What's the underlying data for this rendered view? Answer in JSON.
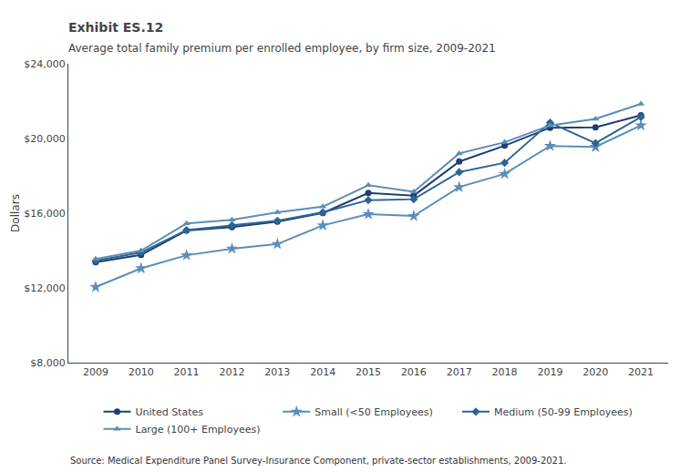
{
  "chart_data": {
    "type": "line",
    "title": "Exhibit ES.12",
    "subtitle": "Average total family premium per enrolled employee, by firm size, 2009-2021",
    "annotations": [
      "Source: Medical Expenditure Panel Survey-Insurance Component, private-sector establishments, 2009-2021."
    ],
    "ylabel": "Dollars",
    "x": [
      2009,
      2010,
      2011,
      2012,
      2013,
      2014,
      2015,
      2016,
      2017,
      2018,
      2019,
      2020,
      2021
    ],
    "series": [
      {
        "name": "United States",
        "color": "#1f3f6e",
        "marker": "circle",
        "values": [
          13375,
          13770,
          15073,
          15253,
          15545,
          16011,
          17082,
          16945,
          18764,
          19616,
          20576,
          20599,
          21241
        ]
      },
      {
        "name": "Small (<50 Employees)",
        "color": "#5a8eb8",
        "marker": "star",
        "values": [
          12050,
          13050,
          13750,
          14100,
          14350,
          15350,
          15950,
          15850,
          17400,
          18100,
          19600,
          19550,
          20700
        ]
      },
      {
        "name": "Medium (50-99 Employees)",
        "color": "#2e6494",
        "marker": "diamond",
        "values": [
          13450,
          13900,
          15100,
          15350,
          15600,
          16050,
          16700,
          16750,
          18200,
          18700,
          20850,
          19750,
          21150
        ]
      },
      {
        "name": "Large (100+ Employees)",
        "color": "#5a8eb8",
        "marker": "triangle-up",
        "values": [
          13550,
          14000,
          15450,
          15650,
          16050,
          16350,
          17500,
          17150,
          19200,
          19800,
          20700,
          21050,
          21850
        ]
      }
    ],
    "xlim": [
      2008.4,
      2021.6
    ],
    "xticks": [
      2009,
      2010,
      2011,
      2012,
      2013,
      2014,
      2015,
      2016,
      2017,
      2018,
      2019,
      2020,
      2021
    ],
    "ylim": [
      8000,
      24000
    ],
    "yticks": [
      {
        "value": 8000,
        "label": "$8,000"
      },
      {
        "value": 12000,
        "label": "$12,000"
      },
      {
        "value": 16000,
        "label": "$16,000"
      },
      {
        "value": 20000,
        "label": "$20,000"
      },
      {
        "value": 24000,
        "label": "$24,000"
      }
    ],
    "grid": false,
    "legend": "bottom"
  }
}
